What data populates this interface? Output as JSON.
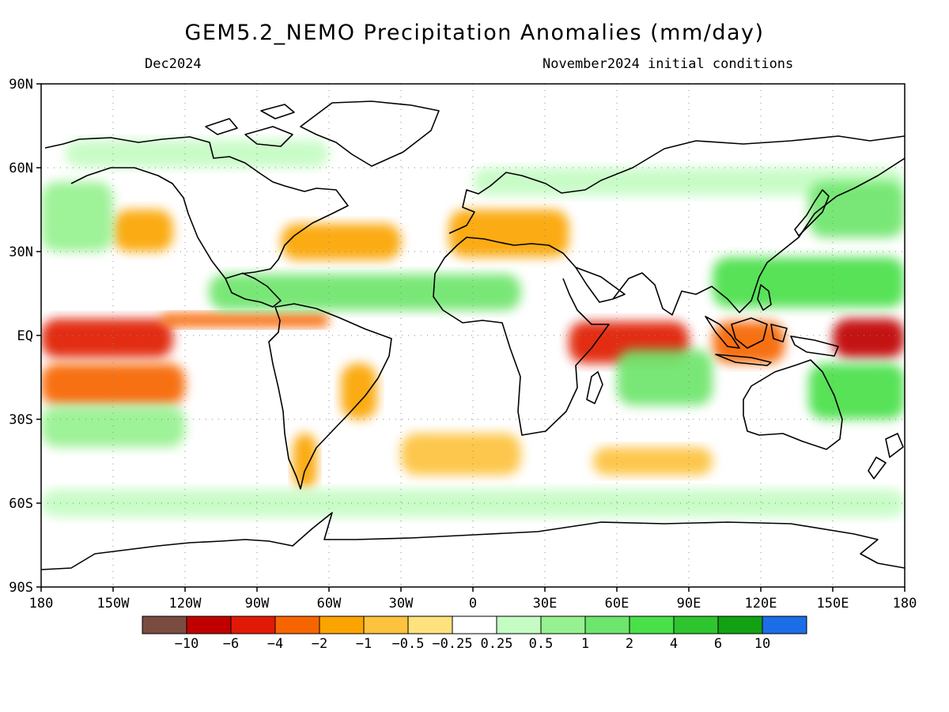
{
  "title": "GEM5.2_NEMO Precipitation Anomalies (mm/day)",
  "valid_month": "Dec2024",
  "initial_conditions": "November2024 initial conditions",
  "lat_labels": [
    "90N",
    "60N",
    "30N",
    "EQ",
    "30S",
    "60S",
    "90S"
  ],
  "lat_values": [
    90,
    60,
    30,
    0,
    -30,
    -60,
    -90
  ],
  "lon_labels": [
    "180",
    "150W",
    "120W",
    "90W",
    "60W",
    "30W",
    "0",
    "30E",
    "60E",
    "90E",
    "120E",
    "150E",
    "180"
  ],
  "lon_values": [
    -180,
    -150,
    -120,
    -90,
    -60,
    -30,
    0,
    30,
    60,
    90,
    120,
    150,
    180
  ],
  "colorbar": {
    "colors": [
      "#7a4c40",
      "#c00000",
      "#e01a06",
      "#f76500",
      "#fba400",
      "#fdc23e",
      "#fde27e",
      "#ffffff",
      "#c4fcc3",
      "#96f190",
      "#6ee56c",
      "#4ae04a",
      "#2fc52f",
      "#12a112",
      "#1c6de8"
    ],
    "boundary_labels": [
      "−10",
      "−6",
      "−4",
      "−2",
      "−1",
      "−0.5",
      "−0.25",
      "0.25",
      "0.5",
      "1",
      "2",
      "4",
      "6",
      "10"
    ],
    "boundary_values": [
      -10,
      -6,
      -4,
      -2,
      -1,
      -0.5,
      -0.25,
      0.25,
      0.5,
      1,
      2,
      4,
      6,
      10
    ]
  },
  "chart_data": {
    "type": "heatmap",
    "variable": "Precipitation anomaly",
    "units": "mm/day",
    "period": "Dec2024",
    "projection": "equirectangular",
    "lon_range": [
      -180,
      180
    ],
    "lat_range": [
      -90,
      90
    ],
    "grid": "dotted 30° lines",
    "anomaly_features": [
      {
        "lon": [
          -180,
          -125
        ],
        "lat": [
          -8,
          6
        ],
        "value": -5
      },
      {
        "lon": [
          -130,
          -60
        ],
        "lat": [
          3,
          8
        ],
        "value": -2.5
      },
      {
        "lon": [
          -180,
          -120
        ],
        "lat": [
          -25,
          -10
        ],
        "value": -2
      },
      {
        "lon": [
          40,
          90
        ],
        "lat": [
          -10,
          5
        ],
        "value": -5
      },
      {
        "lon": [
          150,
          180
        ],
        "lat": [
          -8,
          6
        ],
        "value": -7
      },
      {
        "lon": [
          -150,
          -125
        ],
        "lat": [
          30,
          45
        ],
        "value": -1.5
      },
      {
        "lon": [
          -80,
          -30
        ],
        "lat": [
          27,
          40
        ],
        "value": -1.5
      },
      {
        "lon": [
          -55,
          -40
        ],
        "lat": [
          -30,
          -10
        ],
        "value": -1.5
      },
      {
        "lon": [
          -10,
          40
        ],
        "lat": [
          28,
          45
        ],
        "value": -1
      },
      {
        "lon": [
          100,
          130
        ],
        "lat": [
          -10,
          5
        ],
        "value": -2
      },
      {
        "lon": [
          -30,
          20
        ],
        "lat": [
          -50,
          -35
        ],
        "value": -0.5
      },
      {
        "lon": [
          50,
          100
        ],
        "lat": [
          -50,
          -40
        ],
        "value": -0.5
      },
      {
        "lon": [
          -75,
          -65
        ],
        "lat": [
          -55,
          -35
        ],
        "value": -1
      },
      {
        "lon": [
          -110,
          20
        ],
        "lat": [
          9,
          22
        ],
        "value": 1.5
      },
      {
        "lon": [
          100,
          180
        ],
        "lat": [
          10,
          28
        ],
        "value": 2.5
      },
      {
        "lon": [
          140,
          180
        ],
        "lat": [
          -30,
          -10
        ],
        "value": 4
      },
      {
        "lon": [
          60,
          100
        ],
        "lat": [
          -25,
          -5
        ],
        "value": 2
      },
      {
        "lon": [
          -180,
          -120
        ],
        "lat": [
          -40,
          -25
        ],
        "value": 1
      },
      {
        "lon": [
          -180,
          -150
        ],
        "lat": [
          30,
          55
        ],
        "value": 1
      },
      {
        "lon": [
          -170,
          -60
        ],
        "lat": [
          60,
          70
        ],
        "value": 0.5
      },
      {
        "lon": [
          0,
          180
        ],
        "lat": [
          50,
          60
        ],
        "value": 0.5
      },
      {
        "lon": [
          140,
          180
        ],
        "lat": [
          35,
          55
        ],
        "value": 1.5
      },
      {
        "lon": [
          -180,
          180
        ],
        "lat": [
          -65,
          -55
        ],
        "value": 0.5
      }
    ]
  }
}
